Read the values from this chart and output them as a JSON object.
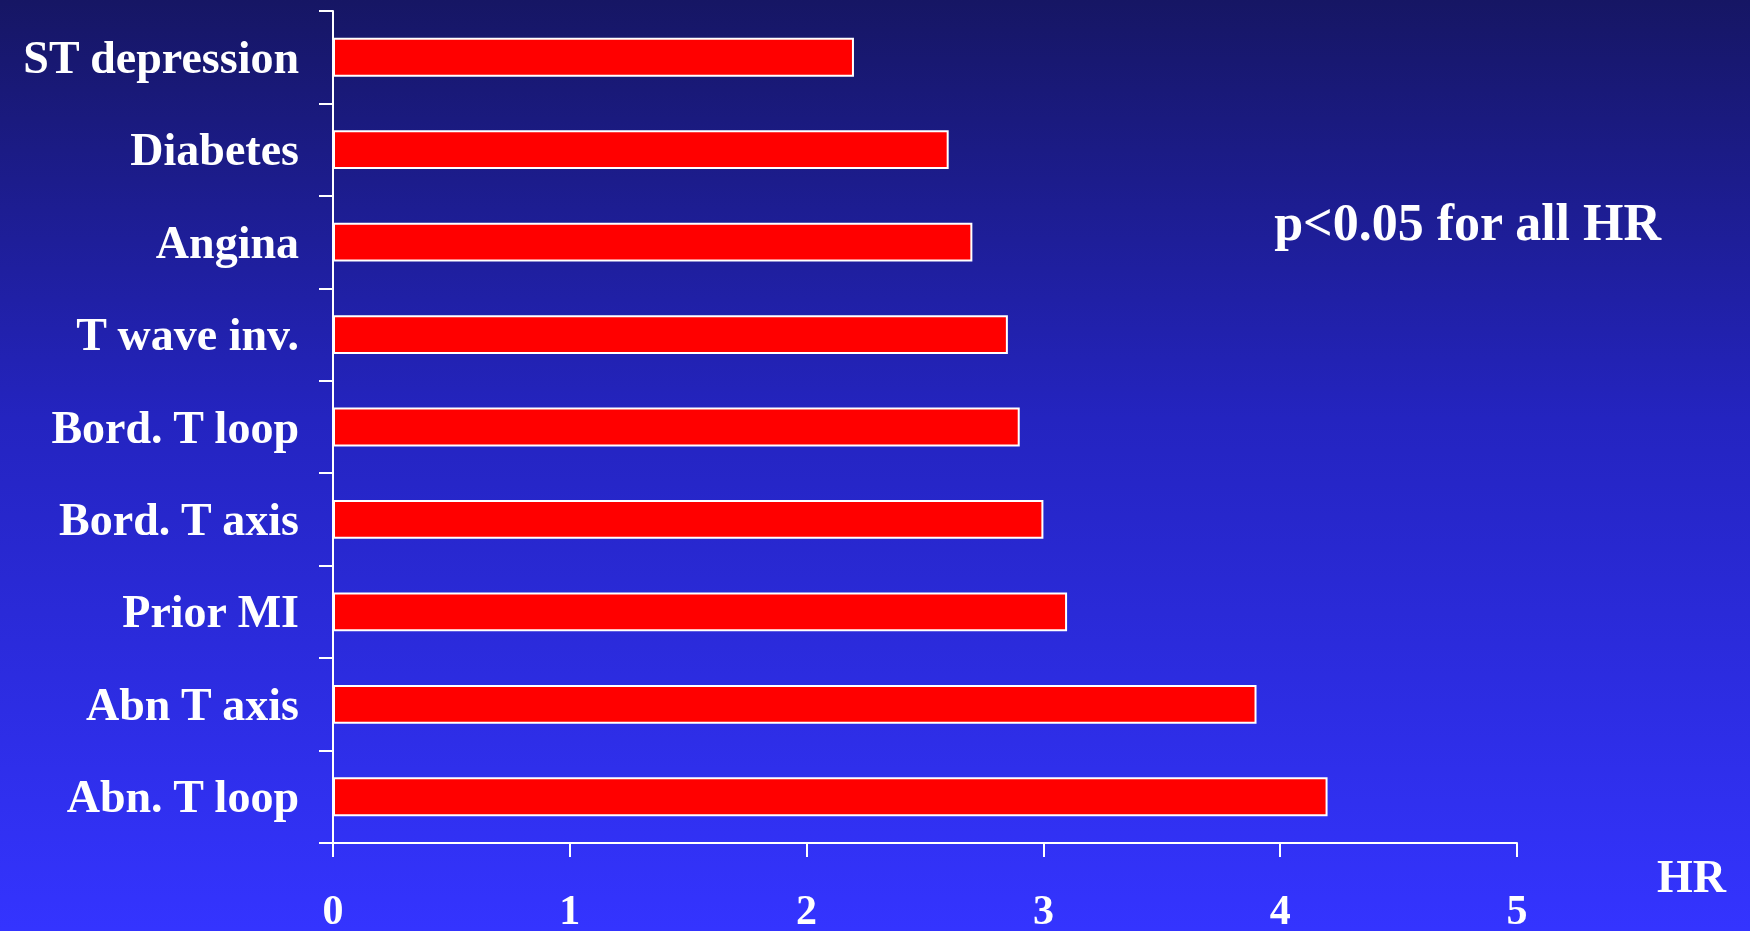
{
  "chart_data": {
    "type": "bar",
    "orientation": "horizontal",
    "categories": [
      "ST depression",
      "Diabetes",
      "Angina",
      "T wave inv.",
      "Bord. T loop",
      "Bord. T axis",
      "Prior MI",
      "Abn T axis",
      "Abn. T loop"
    ],
    "values": [
      2.2,
      2.6,
      2.7,
      2.85,
      2.9,
      3.0,
      3.1,
      3.9,
      4.2
    ],
    "color": "#ff0000",
    "xlim": [
      0,
      5
    ],
    "xticks": [
      0,
      1,
      2,
      3,
      4,
      5
    ],
    "xlabel": "HR",
    "annotations": [
      "p<0.05 for all HR"
    ]
  }
}
